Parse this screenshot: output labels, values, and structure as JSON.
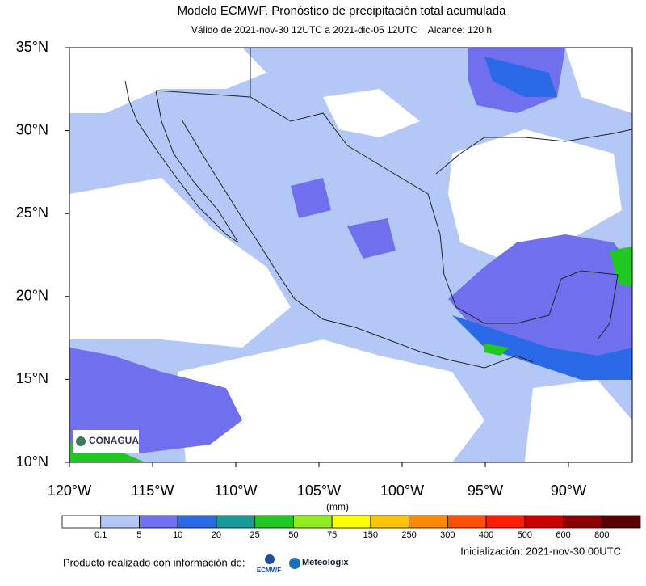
{
  "header": {
    "title": "Modelo ECMWF. Pronóstico de precipitación total acumulada",
    "subtitle": "Válido de 2021-nov-30 12UTC a 2021-dic-05 12UTC    Alcance: 120 h"
  },
  "map": {
    "lat_labels": [
      "35°N",
      "30°N",
      "25°N",
      "20°N",
      "15°N",
      "10°N"
    ],
    "lon_labels": [
      "120°W",
      "115°W",
      "110°W",
      "105°W",
      "100°W",
      "95°W",
      "90°W"
    ],
    "logo": "CONAGUA"
  },
  "colorbar": {
    "unit": "(mm)",
    "ticks": [
      0.1,
      5,
      10,
      20,
      25,
      50,
      75,
      150,
      250,
      300,
      400,
      500,
      600,
      800
    ],
    "colors": [
      "#ffffff",
      "#b4c8f7",
      "#7070ee",
      "#2a6ae6",
      "#169a9a",
      "#22c822",
      "#90ee20",
      "#ffff00",
      "#ffc400",
      "#ff8800",
      "#ff5000",
      "#ff1e00",
      "#c80000",
      "#8c0000",
      "#5a0000"
    ]
  },
  "footer": {
    "credit": "Producto realizado con información de:",
    "init": "Inicialización: 2021-nov-30 00UTC",
    "logo1": "ECMWF",
    "logo2": "Meteologix"
  }
}
